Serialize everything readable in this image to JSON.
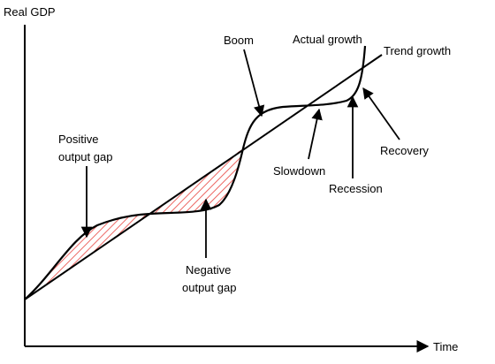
{
  "axes": {
    "y_label": "Real GDP",
    "x_label": "Time"
  },
  "labels": {
    "positive_gap": [
      "Positive",
      "output gap"
    ],
    "negative_gap": [
      "Negative",
      "output gap"
    ],
    "boom": "Boom",
    "actual_growth": "Actual growth",
    "trend_growth": "Trend growth",
    "slowdown": "Slowdown",
    "recession": "Recession",
    "recovery": "Recovery"
  },
  "colors": {
    "hatch": "#e8403a",
    "lines": "#000000"
  }
}
